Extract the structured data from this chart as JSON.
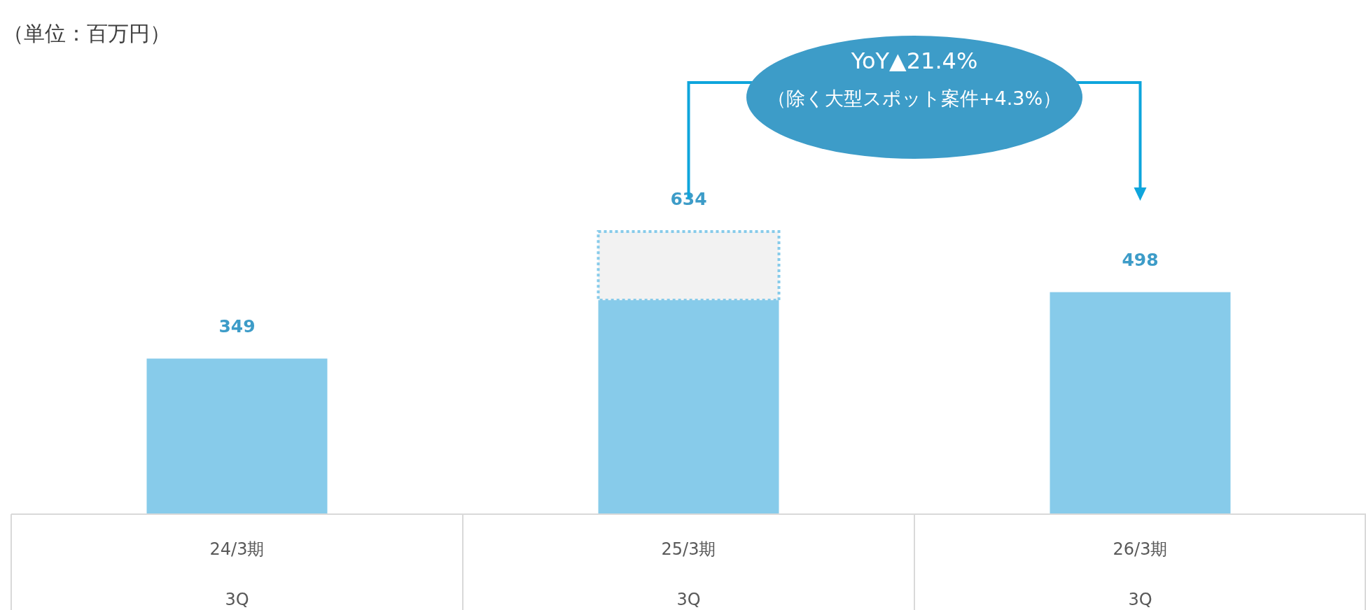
{
  "chart_data": {
    "type": "bar",
    "categories": [
      "24/3期\n3Q",
      "25/3期\n3Q",
      "26/3期\n3Q"
    ],
    "stacked": true,
    "series": [
      {
        "color": "#87cbea",
        "values": [
          349,
          480,
          498
        ],
        "value_labels": [
          "349",
          null,
          "498"
        ]
      },
      {
        "color": "#f2f2f2",
        "line_style": "dotted",
        "values": [
          null,
          154,
          null
        ]
      }
    ],
    "totals": [
      null,
      "634",
      null
    ],
    "annotations": [
      "（単位：百万円）",
      "YoY▲21.4%",
      "（除く大型スポット案件+4.3%）"
    ]
  }
}
